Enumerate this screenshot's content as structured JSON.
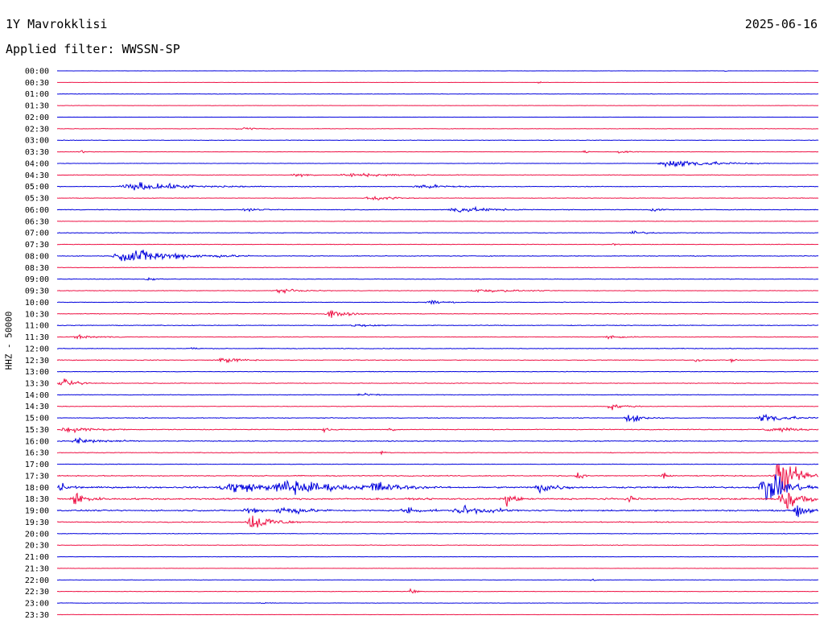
{
  "header": {
    "station": "1Y Mavrokklisi",
    "date": "2025-06-16",
    "filter_label": "Applied filter: WWSSN-SP"
  },
  "colors": {
    "trace_a": "#0000dd",
    "trace_b": "#ee1144"
  },
  "chart_data": {
    "type": "line",
    "title": "1Y Mavrokklisi",
    "subtitle": "Applied filter: WWSSN-SP",
    "ylabel": "HHZ - 50000",
    "xlabel": "",
    "rows": [
      "00:00",
      "00:30",
      "01:00",
      "01:30",
      "02:00",
      "02:30",
      "03:00",
      "03:30",
      "04:00",
      "04:30",
      "05:00",
      "05:30",
      "06:00",
      "06:30",
      "07:00",
      "07:30",
      "08:00",
      "08:30",
      "09:00",
      "09:30",
      "10:00",
      "10:30",
      "11:00",
      "11:30",
      "12:00",
      "12:30",
      "13:00",
      "13:30",
      "14:00",
      "14:30",
      "15:00",
      "15:30",
      "16:00",
      "16:30",
      "17:00",
      "17:30",
      "18:00",
      "18:30",
      "19:00",
      "19:30",
      "20:00",
      "20:30",
      "21:00",
      "21:30",
      "22:00",
      "22:30",
      "23:00",
      "23:30"
    ],
    "x_range": [
      0,
      30
    ],
    "x_unit": "minutes",
    "noise": [
      0.4,
      0.3,
      0.6,
      0.5,
      0.3,
      0.7,
      0.8,
      0.5,
      0.6,
      0.8,
      0.9,
      0.8,
      1.1,
      0.7,
      0.9,
      0.8,
      1.0,
      0.7,
      0.9,
      0.8,
      0.9,
      1.0,
      1.0,
      0.9,
      1.0,
      1.1,
      0.8,
      1.0,
      0.9,
      0.8,
      1.0,
      1.2,
      1.3,
      0.9,
      0.8,
      1.4,
      2.2,
      2.4,
      2.0,
      1.4,
      0.9,
      0.8,
      0.6,
      0.5,
      0.6,
      0.7,
      0.6,
      0.5
    ],
    "events": [
      {
        "row": "00:00",
        "at": 26.3,
        "dur": 0.2,
        "amp": 1.5
      },
      {
        "row": "00:30",
        "at": 18.9,
        "dur": 0.5,
        "amp": 2
      },
      {
        "row": "02:30",
        "at": 7.0,
        "dur": 1.6,
        "amp": 3.5
      },
      {
        "row": "03:30",
        "at": 0.8,
        "dur": 1.0,
        "amp": 2
      },
      {
        "row": "03:30",
        "at": 20.7,
        "dur": 0.5,
        "amp": 2.5
      },
      {
        "row": "03:30",
        "at": 22.0,
        "dur": 1.2,
        "amp": 2.5
      },
      {
        "row": "04:00",
        "at": 23.6,
        "dur": 4.5,
        "amp": 8
      },
      {
        "row": "04:30",
        "at": 9.2,
        "dur": 1.5,
        "amp": 3.5
      },
      {
        "row": "04:30",
        "at": 10.9,
        "dur": 5.2,
        "amp": 3
      },
      {
        "row": "05:00",
        "at": 2.3,
        "dur": 5.8,
        "amp": 7
      },
      {
        "row": "05:00",
        "at": 13.9,
        "dur": 3.2,
        "amp": 4
      },
      {
        "row": "05:30",
        "at": 12.1,
        "dur": 2.3,
        "amp": 5
      },
      {
        "row": "06:00",
        "at": 7.3,
        "dur": 1.2,
        "amp": 3
      },
      {
        "row": "06:00",
        "at": 15.3,
        "dur": 3.3,
        "amp": 5.5
      },
      {
        "row": "06:00",
        "at": 23.3,
        "dur": 1.0,
        "amp": 3
      },
      {
        "row": "07:00",
        "at": 22.5,
        "dur": 1.3,
        "amp": 3.5
      },
      {
        "row": "07:30",
        "at": 21.8,
        "dur": 0.5,
        "amp": 3
      },
      {
        "row": "08:00",
        "at": 2.1,
        "dur": 5.5,
        "amp": 13
      },
      {
        "row": "09:00",
        "at": 3.4,
        "dur": 1.0,
        "amp": 3
      },
      {
        "row": "09:30",
        "at": 8.4,
        "dur": 2.5,
        "amp": 3
      },
      {
        "row": "09:30",
        "at": 16.2,
        "dur": 3.5,
        "amp": 3
      },
      {
        "row": "10:00",
        "at": 14.5,
        "dur": 1.5,
        "amp": 4
      },
      {
        "row": "10:30",
        "at": 10.5,
        "dur": 1.8,
        "amp": 7
      },
      {
        "row": "11:00",
        "at": 11.5,
        "dur": 2.0,
        "amp": 2.5
      },
      {
        "row": "11:30",
        "at": 0.5,
        "dur": 2.5,
        "amp": 2.5
      },
      {
        "row": "11:30",
        "at": 21.5,
        "dur": 2.0,
        "amp": 2.5
      },
      {
        "row": "12:00",
        "at": 5.1,
        "dur": 0.8,
        "amp": 2.5
      },
      {
        "row": "12:30",
        "at": 6.2,
        "dur": 2.0,
        "amp": 5
      },
      {
        "row": "12:30",
        "at": 25.1,
        "dur": 0.6,
        "amp": 4
      },
      {
        "row": "12:30",
        "at": 26.5,
        "dur": 0.3,
        "amp": 5
      },
      {
        "row": "13:30",
        "at": 0.0,
        "dur": 1.9,
        "amp": 6
      },
      {
        "row": "14:00",
        "at": 11.7,
        "dur": 1.5,
        "amp": 2.5
      },
      {
        "row": "14:30",
        "at": 21.6,
        "dur": 1.5,
        "amp": 5.5
      },
      {
        "row": "15:00",
        "at": 22.3,
        "dur": 1.6,
        "amp": 8
      },
      {
        "row": "15:00",
        "at": 27.5,
        "dur": 2.5,
        "amp": 9
      },
      {
        "row": "15:30",
        "at": 0.0,
        "dur": 2.9,
        "amp": 5
      },
      {
        "row": "15:30",
        "at": 10.4,
        "dur": 0.8,
        "amp": 6
      },
      {
        "row": "15:30",
        "at": 13.0,
        "dur": 0.6,
        "amp": 4
      },
      {
        "row": "15:30",
        "at": 27.8,
        "dur": 2.2,
        "amp": 5
      },
      {
        "row": "16:00",
        "at": 0.5,
        "dur": 2.5,
        "amp": 6
      },
      {
        "row": "16:30",
        "at": 12.7,
        "dur": 0.5,
        "amp": 3
      },
      {
        "row": "17:30",
        "at": 20.4,
        "dur": 0.6,
        "amp": 8
      },
      {
        "row": "17:30",
        "at": 23.8,
        "dur": 0.5,
        "amp": 8
      },
      {
        "row": "17:30",
        "at": 28.2,
        "dur": 1.8,
        "amp": 45
      },
      {
        "row": "18:00",
        "at": 0.0,
        "dur": 1.0,
        "amp": 9
      },
      {
        "row": "18:00",
        "at": 6.2,
        "dur": 4.5,
        "amp": 10
      },
      {
        "row": "18:00",
        "at": 8.5,
        "dur": 4.5,
        "amp": 14
      },
      {
        "row": "18:00",
        "at": 12.0,
        "dur": 3.0,
        "amp": 10
      },
      {
        "row": "18:00",
        "at": 18.8,
        "dur": 1.7,
        "amp": 11
      },
      {
        "row": "18:00",
        "at": 27.6,
        "dur": 2.4,
        "amp": 28
      },
      {
        "row": "18:30",
        "at": 0.5,
        "dur": 1.4,
        "amp": 11
      },
      {
        "row": "18:30",
        "at": 17.6,
        "dur": 0.8,
        "amp": 13
      },
      {
        "row": "18:30",
        "at": 22.5,
        "dur": 0.5,
        "amp": 9
      },
      {
        "row": "18:30",
        "at": 28.4,
        "dur": 1.6,
        "amp": 30
      },
      {
        "row": "19:00",
        "at": 7.3,
        "dur": 1.0,
        "amp": 9
      },
      {
        "row": "19:00",
        "at": 8.5,
        "dur": 2.5,
        "amp": 8
      },
      {
        "row": "19:00",
        "at": 13.5,
        "dur": 1.5,
        "amp": 7
      },
      {
        "row": "19:00",
        "at": 15.5,
        "dur": 3.0,
        "amp": 8
      },
      {
        "row": "19:00",
        "at": 29.0,
        "dur": 1.0,
        "amp": 15
      },
      {
        "row": "19:30",
        "at": 7.4,
        "dur": 2.2,
        "amp": 16
      },
      {
        "row": "22:00",
        "at": 21.0,
        "dur": 0.4,
        "amp": 5
      },
      {
        "row": "22:30",
        "at": 13.8,
        "dur": 0.8,
        "amp": 5
      },
      {
        "row": "23:00",
        "at": 7.9,
        "dur": 1.0,
        "amp": 1.5
      }
    ]
  }
}
